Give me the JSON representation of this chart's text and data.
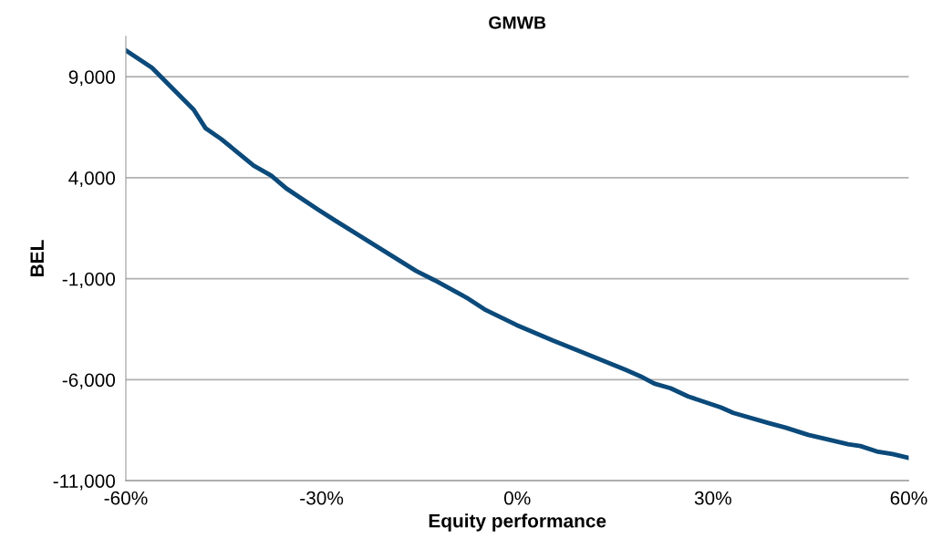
{
  "chart_data": {
    "type": "line",
    "title": "GMWB",
    "xlabel": "Equity performance",
    "ylabel": "BEL",
    "x": [
      -60,
      -56,
      -49.6,
      -47.8,
      -45.4,
      -40.4,
      -37.7,
      -35.4,
      -30.5,
      -27.9,
      -15.5,
      -12.7,
      -7.8,
      -5,
      -0.1,
      5.5,
      9,
      16.6,
      18.9,
      21,
      23.5,
      26.2,
      31.2,
      33.1,
      38.5,
      41.1,
      44.6,
      47,
      50.7,
      52.6,
      55.1,
      57.5,
      60
    ],
    "series": [
      {
        "color": "#0b4a7a",
        "values": [
          10300,
          9450,
          7370,
          6460,
          5920,
          4600,
          4100,
          3470,
          2420,
          1880,
          -615,
          -1070,
          -1930,
          -2520,
          -3290,
          -4060,
          -4510,
          -5510,
          -5830,
          -6190,
          -6420,
          -6830,
          -7370,
          -7640,
          -8140,
          -8370,
          -8730,
          -8910,
          -9190,
          -9280,
          -9550,
          -9680,
          -9870
        ]
      }
    ],
    "xlim": [
      -60,
      60
    ],
    "xticks": [
      {
        "value": -60,
        "label": "-60%"
      },
      {
        "value": -30,
        "label": "-30%"
      },
      {
        "value": 0,
        "label": "0%"
      },
      {
        "value": 30,
        "label": "30%"
      },
      {
        "value": 60,
        "label": "60%"
      }
    ],
    "ylim": [
      -11000,
      11000
    ],
    "yticks": [
      {
        "value": -11000,
        "label": "-11,000"
      },
      {
        "value": -6000,
        "label": "-6,000"
      },
      {
        "value": -1000,
        "label": "-1,000"
      },
      {
        "value": 4000,
        "label": "4,000"
      },
      {
        "value": 9000,
        "label": "9,000"
      }
    ],
    "grid": "y",
    "legend": false,
    "marker": "none",
    "line_style": "solid"
  }
}
